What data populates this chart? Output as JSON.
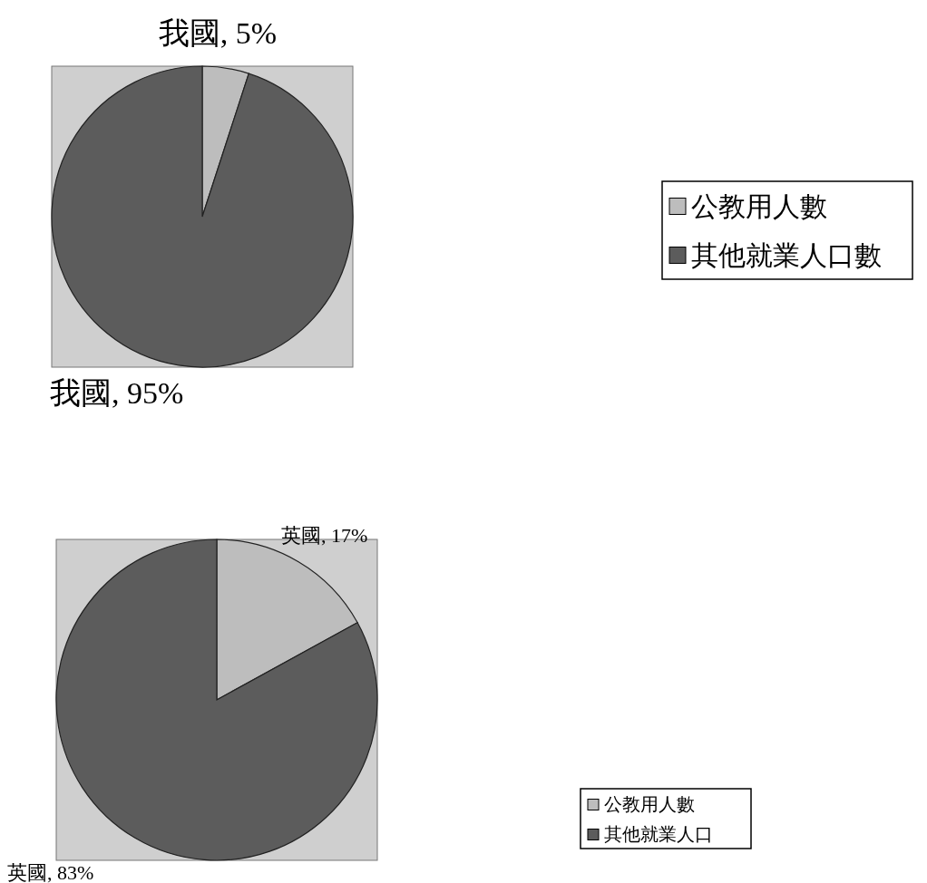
{
  "chart_data": [
    {
      "type": "pie",
      "categories": [
        "公教用人數",
        "其他就業人口數"
      ],
      "values": [
        5,
        95
      ],
      "colors": [
        "#bdbdbd",
        "#5c5c5c"
      ],
      "value_labels": [
        "我國, 5%",
        "我國, 95%"
      ],
      "legend": "right"
    },
    {
      "type": "pie",
      "categories": [
        "公教用人數",
        "其他就業人口"
      ],
      "values": [
        17,
        83
      ],
      "colors": [
        "#bdbdbd",
        "#5c5c5c"
      ],
      "value_labels": [
        "英國, 17%",
        "英國, 83%"
      ],
      "legend": "right"
    }
  ]
}
